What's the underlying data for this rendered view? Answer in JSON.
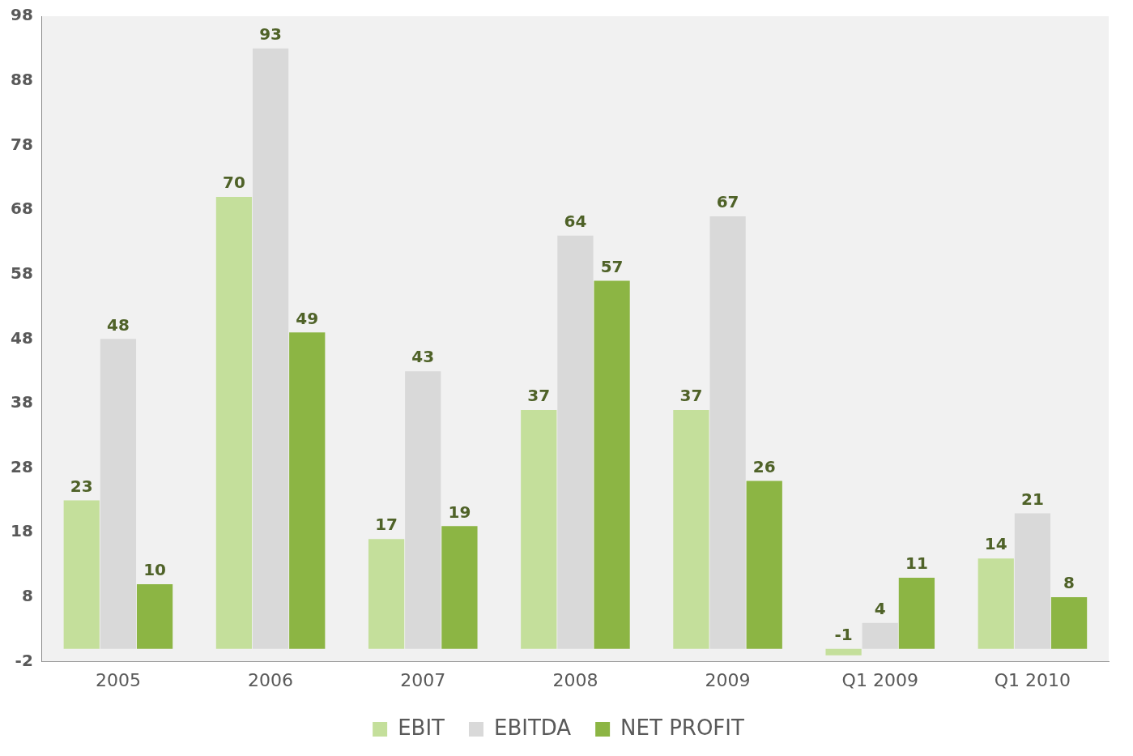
{
  "chart_data": {
    "type": "bar",
    "categories": [
      "2005",
      "2006",
      "2007",
      "2008",
      "2009",
      "Q1 2009",
      "Q1 2010"
    ],
    "series": [
      {
        "name": "EBIT",
        "color": "#c4df9b",
        "values": [
          23,
          70,
          17,
          37,
          37,
          -1,
          14
        ]
      },
      {
        "name": "EBITDA",
        "color": "#d9d9d9",
        "values": [
          48,
          93,
          43,
          64,
          67,
          4,
          21
        ]
      },
      {
        "name": "NET PROFIT",
        "color": "#8cb544",
        "values": [
          10,
          49,
          19,
          57,
          26,
          11,
          8
        ]
      }
    ],
    "ylim": [
      -2,
      98
    ],
    "yticks": [
      -2,
      8,
      18,
      28,
      38,
      48,
      58,
      68,
      78,
      88,
      98
    ],
    "grid": false,
    "legend": "bottom",
    "data_labels": true
  }
}
